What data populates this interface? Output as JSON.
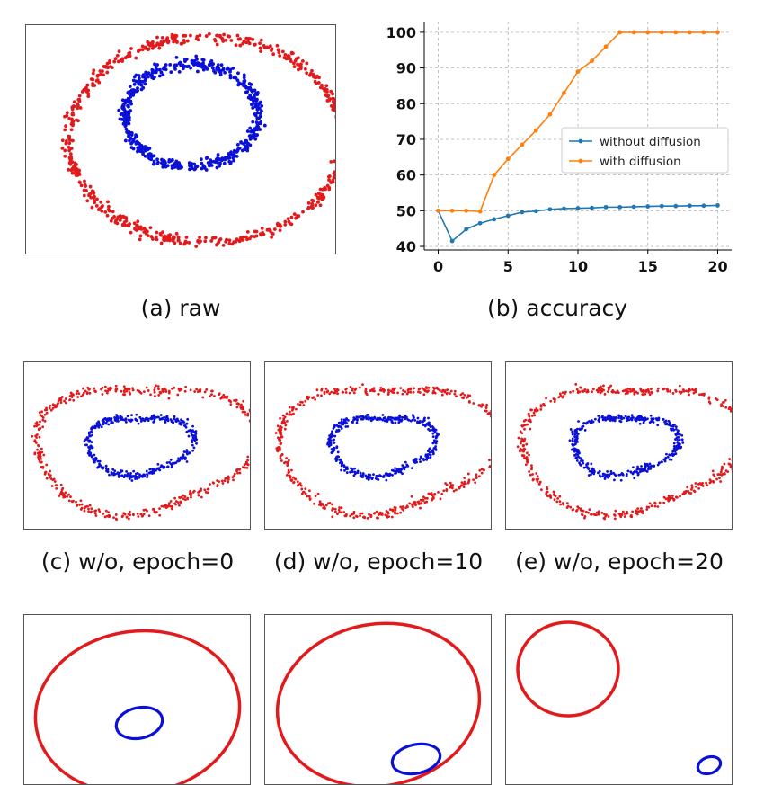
{
  "captions": {
    "a": "(a) raw",
    "b": "(b) accuracy",
    "c": "(c) w/o, epoch=0",
    "d": "(d) w/o, epoch=10",
    "e": "(e) w/o, epoch=20"
  },
  "colors": {
    "outer_ring": "#e31a1c",
    "inner_ring": "#0a10d8",
    "without_diffusion": "#1f77b4",
    "with_diffusion": "#ff7f0e"
  },
  "chart_data": [
    {
      "type": "scatter",
      "caption": "(a) raw",
      "series": [
        {
          "cx": 0,
          "cy": 0,
          "rx": 1.0,
          "ry": 1.0,
          "color": "red"
        },
        {
          "cx": 0,
          "cy": 0,
          "rx": 0.5,
          "ry": 0.5,
          "color": "blue"
        }
      ]
    },
    {
      "type": "line",
      "caption": "(b) accuracy",
      "x": [
        0,
        1,
        2,
        3,
        4,
        5,
        6,
        7,
        8,
        9,
        10,
        11,
        12,
        13,
        14,
        15,
        16,
        17,
        18,
        19,
        20
      ],
      "xlim": [
        -1,
        21
      ],
      "ylim": [
        39,
        103
      ],
      "xticks": [
        0,
        5,
        10,
        15,
        20
      ],
      "yticks": [
        40,
        50,
        60,
        70,
        80,
        90,
        100
      ],
      "grid": true,
      "legend": "center-right",
      "series": [
        {
          "name": "without diffusion",
          "color": "#1f77b4",
          "values": [
            50,
            41.5,
            44.8,
            46.5,
            47.6,
            48.6,
            49.6,
            49.9,
            50.4,
            50.6,
            50.7,
            50.8,
            51.0,
            51.0,
            51.1,
            51.2,
            51.3,
            51.3,
            51.4,
            51.4,
            51.5
          ]
        },
        {
          "name": "with diffusion",
          "color": "#ff7f0e",
          "values": [
            50,
            50,
            50,
            49.8,
            60,
            64.5,
            68.5,
            72.5,
            77,
            83,
            89,
            92,
            96,
            100,
            100,
            100,
            100,
            100,
            100,
            100,
            100
          ]
        }
      ]
    },
    {
      "type": "scatter",
      "caption": "(c) w/o, epoch=0",
      "shape": "heart"
    },
    {
      "type": "scatter",
      "caption": "(d) w/o, epoch=10",
      "shape": "heart"
    },
    {
      "type": "scatter",
      "caption": "(e) w/o, epoch=20",
      "shape": "heart"
    },
    {
      "type": "line",
      "shape": "ellipses"
    },
    {
      "type": "line",
      "shape": "ellipses"
    },
    {
      "type": "line",
      "shape": "ellipses"
    }
  ]
}
